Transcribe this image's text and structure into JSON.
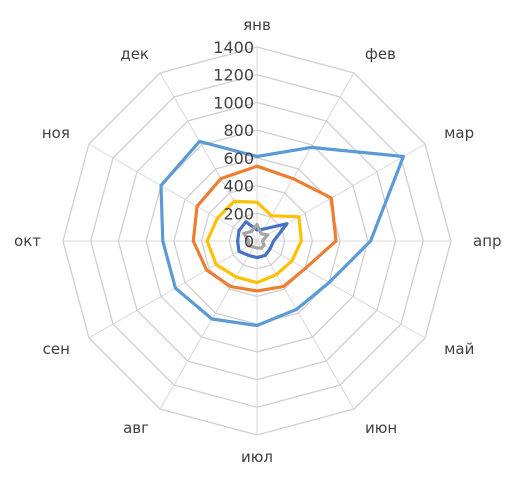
{
  "chart_data": {
    "type": "radar",
    "title": "",
    "categories": [
      "янв",
      "фев",
      "мар",
      "апр",
      "май",
      "июн",
      "июл",
      "авг",
      "сен",
      "окт",
      "ноя",
      "дек"
    ],
    "ticks": [
      "0",
      "200",
      "400",
      "600",
      "800",
      "1000",
      "1200",
      "1400"
    ],
    "range": [
      0,
      1400
    ],
    "grid": true,
    "legend": "none",
    "series": [
      {
        "color": "#5B9BD5",
        "values": [
          610,
          780,
          1220,
          820,
          600,
          570,
          610,
          650,
          680,
          680,
          800,
          830
        ]
      },
      {
        "color": "#ED7D31",
        "values": [
          540,
          520,
          620,
          570,
          400,
          380,
          360,
          380,
          420,
          460,
          500,
          520
        ]
      },
      {
        "color": "#FFC000",
        "values": [
          280,
          210,
          350,
          320,
          290,
          280,
          300,
          300,
          340,
          360,
          330,
          330
        ]
      },
      {
        "color": "#4472C4",
        "values": [
          80,
          100,
          250,
          120,
          110,
          120,
          120,
          120,
          150,
          140,
          150,
          160
        ]
      },
      {
        "color": "#A5A5A5",
        "values": [
          120,
          60,
          90,
          40,
          60,
          60,
          50,
          50,
          70,
          60,
          110,
          80
        ]
      }
    ]
  }
}
